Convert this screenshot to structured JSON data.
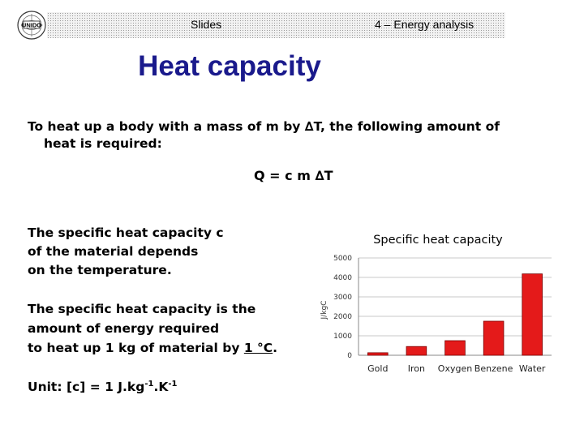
{
  "header": {
    "left_label": "Slides",
    "right_label": "4 – Energy analysis",
    "logo": "UNIDO"
  },
  "title": "Heat capacity",
  "intro": {
    "line1": "To heat up a body with a mass of m by ∆T, the following amount of",
    "line2": "heat is required:"
  },
  "formula": "Q = c m ∆T",
  "para1": {
    "line1": "The specific heat capacity c",
    "line2": "of the material depends",
    "line3": "on the temperature."
  },
  "para2": {
    "line1": "The specific heat capacity is the",
    "line2": "amount of energy required",
    "line3_prefix": "to heat up 1 kg of material by ",
    "line3_underlined": "1 °C",
    "line3_suffix": "."
  },
  "unit": {
    "prefix": "Unit: [c] = 1 J.kg",
    "exp1": "-1",
    "middle": ".K",
    "exp2": "-1"
  },
  "chart_data": {
    "type": "bar",
    "title": "Specific heat capacity",
    "ylabel": "J/kgC",
    "categories": [
      "Gold",
      "Iron",
      "Oxygen",
      "Benzene",
      "Water"
    ],
    "values": [
      130,
      450,
      750,
      1750,
      4180
    ],
    "ylim": [
      0,
      5000
    ],
    "yticks": [
      0,
      1000,
      2000,
      3000,
      4000,
      5000
    ],
    "bar_color": "#e41a1a",
    "grid": true
  }
}
